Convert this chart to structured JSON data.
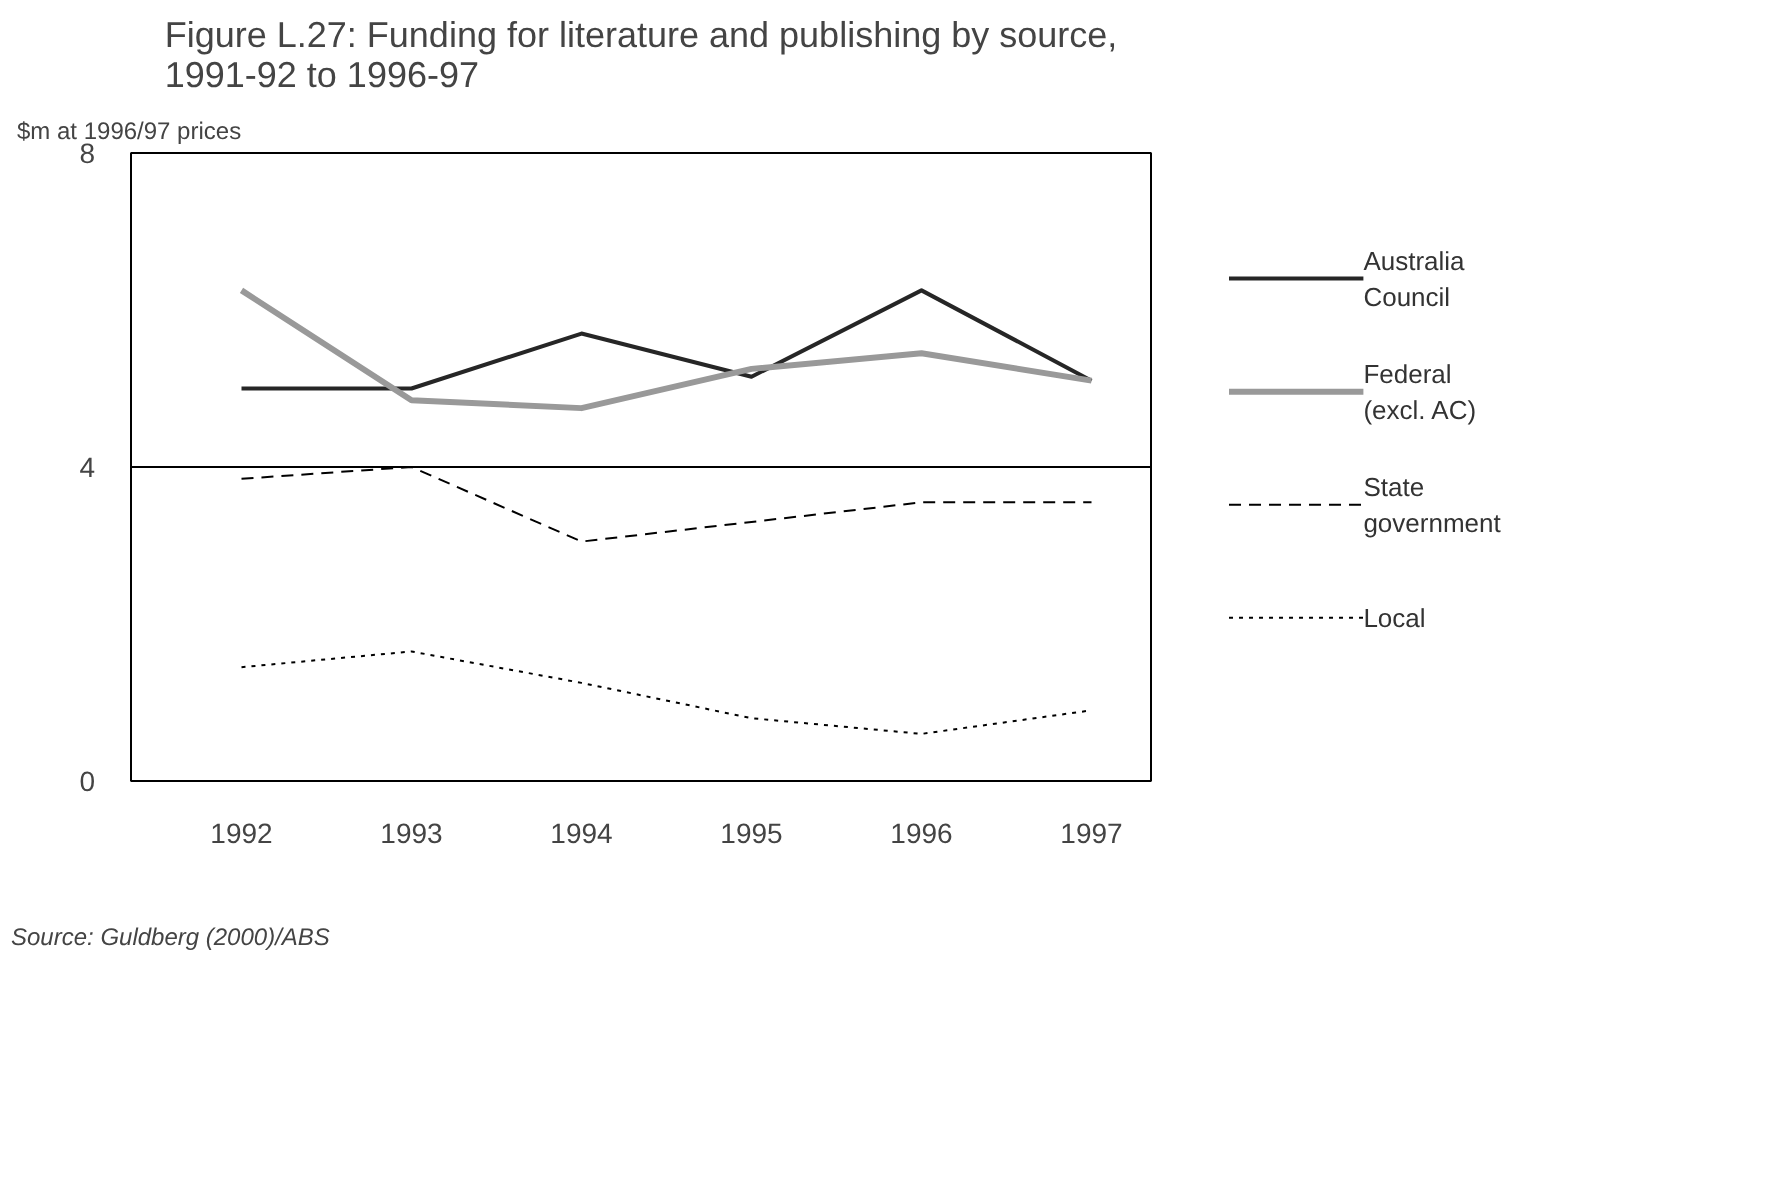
{
  "chart_data": {
    "type": "line",
    "title": "Figure L.27: Funding for literature and publishing by source, 1991-92 to 1996-97",
    "ylabel": "$m at 1996/97 prices",
    "categories": [
      "1992",
      "1993",
      "1994",
      "1995",
      "1996",
      "1997"
    ],
    "series": [
      {
        "name": "Australia Council",
        "color": "#262626",
        "line_style": "solid",
        "values": [
          5.0,
          5.0,
          5.7,
          5.15,
          6.25,
          5.1
        ]
      },
      {
        "name": "Federal (excl. AC)",
        "color": "#999999",
        "line_style": "solid",
        "values": [
          6.25,
          4.85,
          4.75,
          5.25,
          5.45,
          5.1
        ]
      },
      {
        "name": "State government",
        "color": "#000000",
        "line_style": "dashed",
        "values": [
          3.85,
          4.0,
          3.05,
          3.3,
          3.55,
          3.55
        ]
      },
      {
        "name": "Local",
        "color": "#000000",
        "line_style": "dotted",
        "values": [
          1.45,
          1.65,
          1.25,
          0.8,
          0.6,
          0.9
        ]
      }
    ],
    "ylim": [
      0,
      8
    ],
    "yticks": [
      0,
      4,
      8
    ],
    "grid": "y",
    "legend": "right",
    "marker": "none",
    "annotations": [
      "Source: Guldberg (2000)/ABS"
    ]
  }
}
